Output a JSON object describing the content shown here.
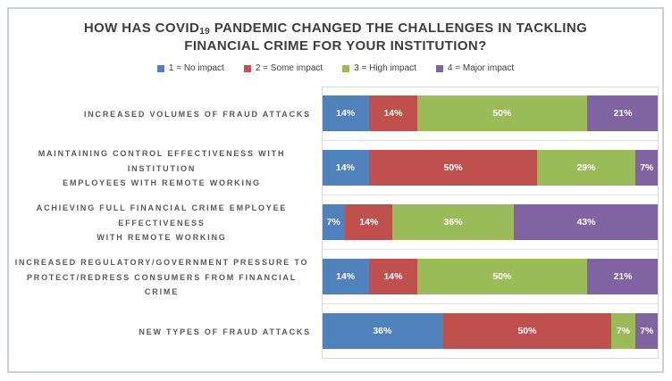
{
  "chart_data": {
    "type": "bar",
    "variant": "horizontal-stacked",
    "title": "HOW HAS COVID19 PANDEMIC CHANGED THE CHALLENGES IN TACKLING FINANCIAL CRIME FOR YOUR INSTITUTION?",
    "title_parts": {
      "pre": "HOW HAS COVID",
      "sub": "19",
      "post": " PANDEMIC CHANGED THE CHALLENGES IN TACKLING FINANCIAL CRIME FOR YOUR INSTITUTION?"
    },
    "legend_position": "top",
    "legend": [
      {
        "label": "1 = No impact",
        "color": "#4F81BD"
      },
      {
        "label": "2 = Some impact",
        "color": "#C0504D"
      },
      {
        "label": "3 = High impact",
        "color": "#9BBB59"
      },
      {
        "label": "4 = Major impact",
        "color": "#8064A2"
      }
    ],
    "categories": [
      "INCREASED VOLUMES OF FRAUD ATTACKS",
      "MAINTAINING CONTROL EFFECTIVENESS WITH INSTITUTION EMPLOYEES WITH REMOTE WORKING",
      "ACHIEVING FULL FINANCIAL CRIME EMPLOYEE EFFECTIVENESS WITH REMOTE WORKING",
      "INCREASED REGULATORY/GOVERNMENT PRESSURE TO PROTECT/REDRESS CONSUMERS FROM FINANCIAL CRIME",
      "NEW TYPES OF FRAUD ATTACKS"
    ],
    "categories_wrapped": [
      [
        "INCREASED VOLUMES OF FRAUD ATTACKS"
      ],
      [
        "MAINTAINING CONTROL EFFECTIVENESS WITH INSTITUTION",
        "EMPLOYEES WITH REMOTE WORKING"
      ],
      [
        "ACHIEVING FULL FINANCIAL CRIME EMPLOYEE EFFECTIVENESS",
        "WITH REMOTE WORKING"
      ],
      [
        "INCREASED REGULATORY/GOVERNMENT PRESSURE TO",
        "PROTECT/REDRESS CONSUMERS FROM FINANCIAL CRIME"
      ],
      [
        "NEW TYPES OF FRAUD ATTACKS"
      ]
    ],
    "series": [
      {
        "name": "1 = No impact",
        "color": "#4F81BD",
        "values": [
          14,
          14,
          7,
          14,
          36
        ]
      },
      {
        "name": "2 = Some impact",
        "color": "#C0504D",
        "values": [
          14,
          50,
          14,
          14,
          50
        ]
      },
      {
        "name": "3 = High impact",
        "color": "#9BBB59",
        "values": [
          50,
          29,
          36,
          50,
          7
        ]
      },
      {
        "name": "4 = Major impact",
        "color": "#8064A2",
        "values": [
          21,
          7,
          43,
          21,
          7
        ]
      }
    ],
    "value_suffix": "%",
    "xlim": [
      0,
      100
    ],
    "grid": "category-separators",
    "colors": {
      "title_text": "#3d3d3d",
      "category_text": "#595959",
      "legend_text": "#3f3f3f",
      "bar_label_text": "#ffffff",
      "plot_border": "#d8d8d8",
      "grid_line": "#e6e6e6",
      "figure_border": "#cbd1da"
    }
  }
}
